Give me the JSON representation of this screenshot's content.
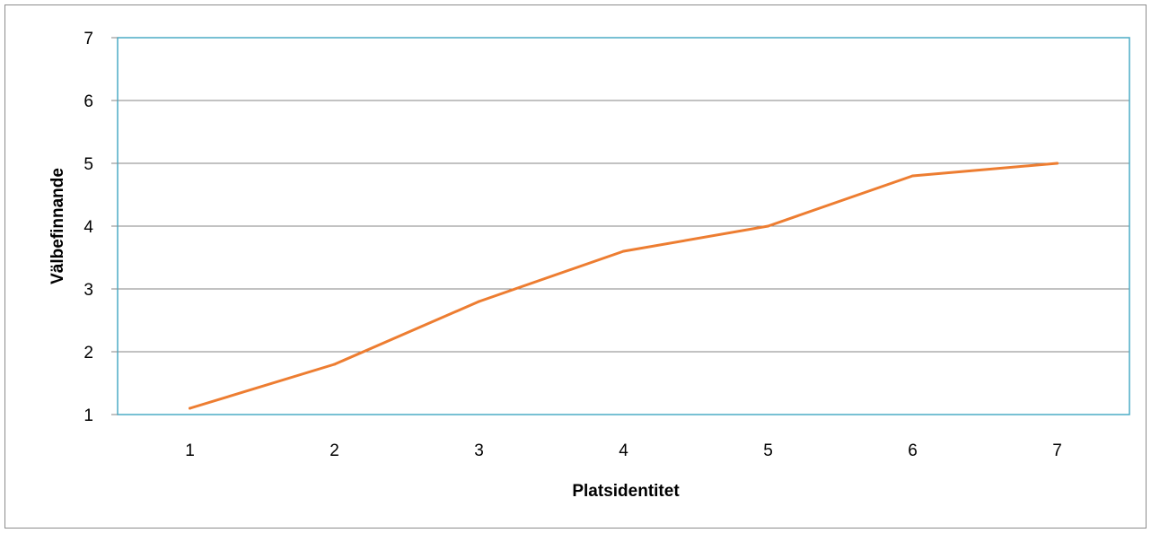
{
  "chart_data": {
    "type": "line",
    "title": "",
    "xlabel": "Platsidentitet",
    "ylabel": "Välbefinnande",
    "x": [
      1,
      2,
      3,
      4,
      5,
      6,
      7
    ],
    "x_tick_labels": [
      "1",
      "2",
      "3",
      "4",
      "5",
      "6",
      "7"
    ],
    "y_tick_labels": [
      "1",
      "2",
      "3",
      "4",
      "5",
      "6",
      "7"
    ],
    "ylim": [
      1,
      7
    ],
    "series": [
      {
        "values": [
          1.1,
          1.8,
          2.8,
          3.6,
          4.0,
          4.8,
          5.0
        ],
        "color": "#ED7D31"
      }
    ],
    "grid": true,
    "legend": "none",
    "plot_border_color": "#4BACC6",
    "gridline_color": "#868686"
  }
}
